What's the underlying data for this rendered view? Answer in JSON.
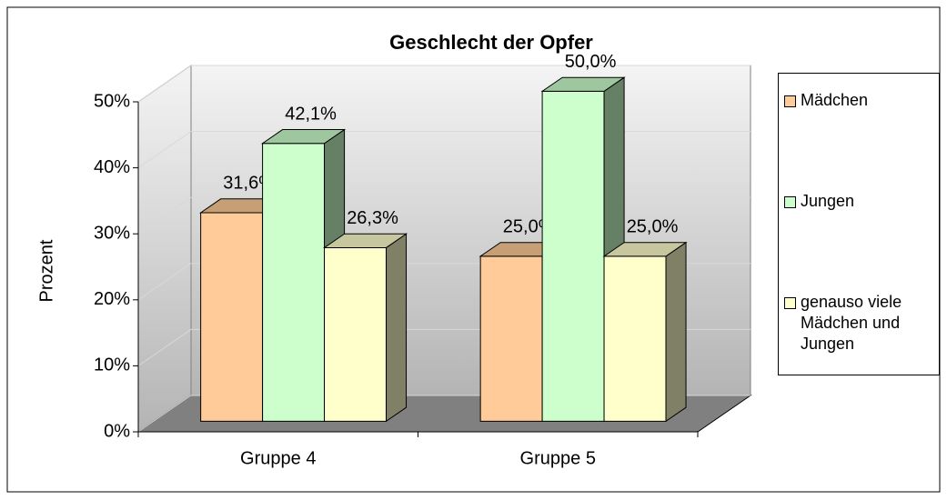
{
  "chart_data": {
    "type": "bar3d",
    "title": "Geschlecht der Opfer",
    "ylabel": "Prozent",
    "categories": [
      "Gruppe 4",
      "Gruppe 5"
    ],
    "series": [
      {
        "name": "Mädchen",
        "color": "#FFCC99",
        "values": [
          31.6,
          25.0
        ],
        "value_labels": [
          "31,6%",
          "25,0%"
        ]
      },
      {
        "name": "Jungen",
        "color": "#CCFFCC",
        "values": [
          42.1,
          50.0
        ],
        "value_labels": [
          "42,1%",
          "50,0%"
        ]
      },
      {
        "name": "genauso viele Mädchen und Jungen",
        "color": "#FFFFCC",
        "values": [
          26.3,
          25.0
        ],
        "value_labels": [
          "26,3%",
          "25,0%"
        ]
      }
    ],
    "ylim": [
      0,
      50
    ],
    "yticks": [
      {
        "value": 0,
        "label": "0%"
      },
      {
        "value": 10,
        "label": "10%"
      },
      {
        "value": 20,
        "label": "20%"
      },
      {
        "value": 30,
        "label": "30%"
      },
      {
        "value": 40,
        "label": "40%"
      },
      {
        "value": 50,
        "label": "50%"
      }
    ],
    "grid": true,
    "legend": "right"
  }
}
